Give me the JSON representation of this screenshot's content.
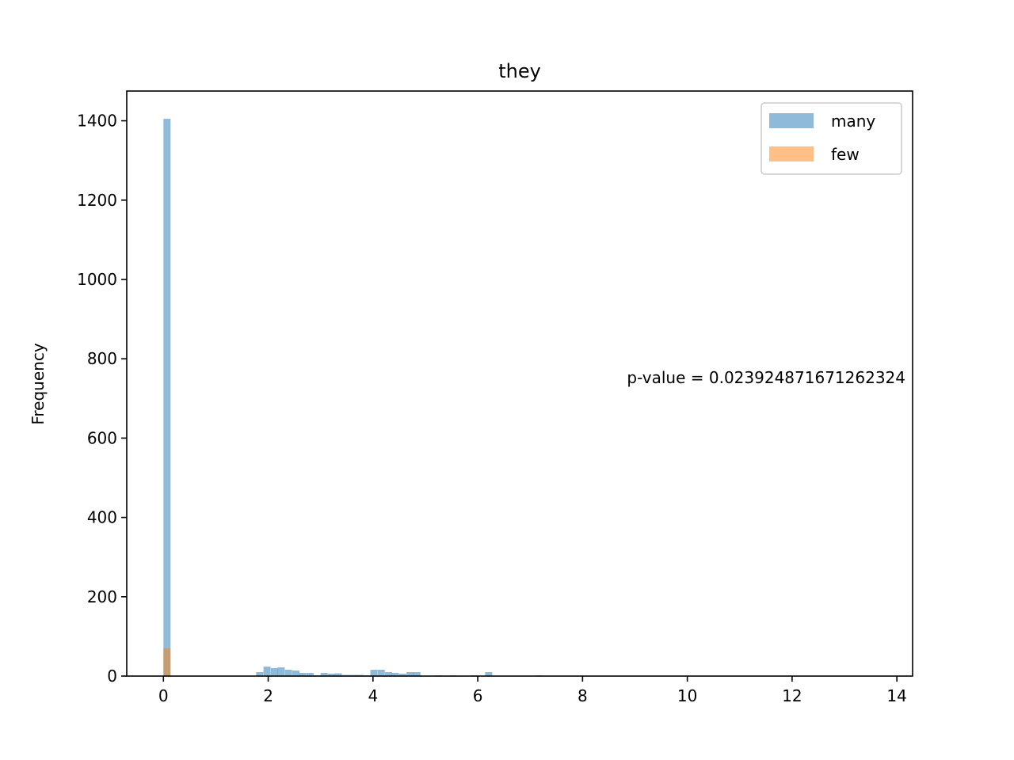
{
  "chart_data": {
    "type": "bar",
    "title": "they",
    "xlabel": "",
    "ylabel": "Frequency",
    "xlim": [
      -0.7,
      14.3
    ],
    "ylim": [
      0,
      1475
    ],
    "xticks": [
      0,
      2,
      4,
      6,
      8,
      10,
      12,
      14
    ],
    "yticks": [
      0,
      200,
      400,
      600,
      800,
      1000,
      1200,
      1400
    ],
    "bin_width": 0.136,
    "legend_position": "top-right",
    "grid": false,
    "annotation": "p-value = 0.023924871671262324",
    "series": [
      {
        "name": "many",
        "color": "#1f77b4",
        "opacity": 0.5,
        "bins": [
          [
            0.0,
            1405
          ],
          [
            1.77,
            10
          ],
          [
            1.91,
            24
          ],
          [
            2.05,
            20
          ],
          [
            2.18,
            22
          ],
          [
            2.32,
            16
          ],
          [
            2.46,
            14
          ],
          [
            2.59,
            8
          ],
          [
            2.73,
            8
          ],
          [
            2.87,
            2
          ],
          [
            3.0,
            8
          ],
          [
            3.14,
            6
          ],
          [
            3.27,
            7
          ],
          [
            3.41,
            3
          ],
          [
            3.55,
            3
          ],
          [
            3.68,
            3
          ],
          [
            3.82,
            2
          ],
          [
            3.95,
            16
          ],
          [
            4.09,
            16
          ],
          [
            4.23,
            10
          ],
          [
            4.36,
            8
          ],
          [
            4.5,
            6
          ],
          [
            4.64,
            10
          ],
          [
            4.77,
            10
          ],
          [
            5.18,
            2
          ],
          [
            5.46,
            2
          ],
          [
            5.87,
            2
          ],
          [
            6.14,
            10
          ],
          [
            7.1,
            2
          ]
        ]
      },
      {
        "name": "few",
        "color": "#ff7f0e",
        "opacity": 0.5,
        "bins": [
          [
            0.0,
            70
          ]
        ]
      }
    ]
  }
}
